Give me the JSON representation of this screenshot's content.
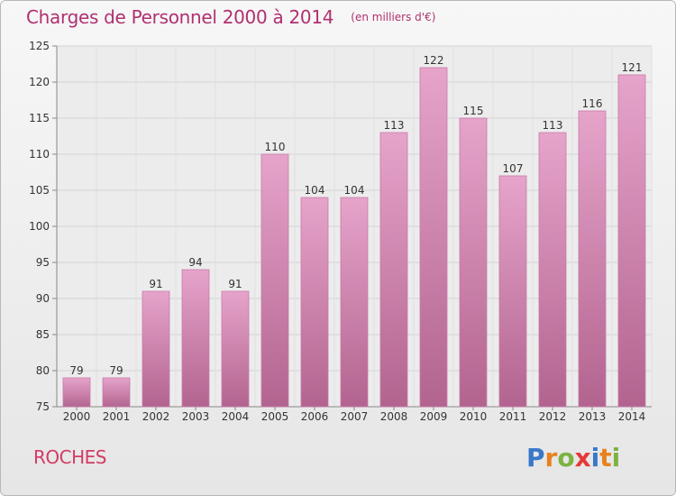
{
  "chart_data": {
    "type": "bar",
    "title": "Charges de Personnel 2000 à 2014",
    "subtitle": "(en milliers d'€)",
    "categories": [
      "2000",
      "2001",
      "2002",
      "2003",
      "2004",
      "2005",
      "2006",
      "2007",
      "2008",
      "2009",
      "2010",
      "2011",
      "2012",
      "2013",
      "2014"
    ],
    "values": [
      79,
      79,
      91,
      94,
      91,
      110,
      104,
      104,
      113,
      122,
      115,
      107,
      113,
      116,
      121
    ],
    "ylim": [
      75,
      125
    ],
    "yticks": [
      75,
      80,
      85,
      90,
      95,
      100,
      105,
      110,
      115,
      120,
      125
    ],
    "grid": true,
    "bar_color": "#d97fb0"
  },
  "commune": "ROCHES",
  "logo": {
    "text": "Proxiti",
    "letter_colors": [
      "#3a78c8",
      "#e8821e",
      "#7cb342",
      "#e53935",
      "#3a78c8",
      "#e8821e",
      "#7cb342"
    ]
  }
}
